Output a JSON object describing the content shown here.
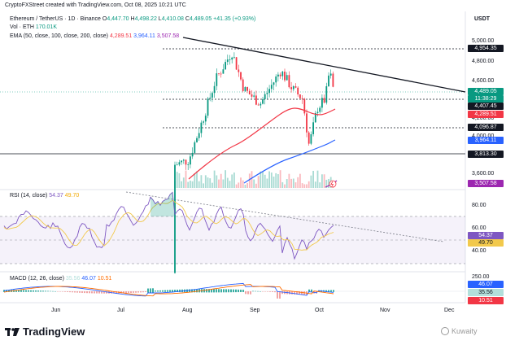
{
  "header": {
    "created": "CryptoFXStreet created with TradingView.com, Oct 08, 2025 10:21 UTC",
    "symbol": "Ethereum / TetherUS · 1D · Binance",
    "ohlc": {
      "o_label": "O",
      "o": "4,447.70",
      "h_label": "H",
      "h": "4,498.22",
      "l_label": "L",
      "l": "4,410.08",
      "c_label": "C",
      "c": "4,489.05",
      "chg": "+41.35 (+0.93%)"
    },
    "vol_label": "Vol · ETH",
    "vol_value": "170.01K",
    "ema_label": "EMA (50, close, 100, close, 200, close)",
    "ema_50": "4,289.51",
    "ema_100": "3,964.11",
    "ema_200": "3,507.58"
  },
  "price_axis": {
    "currency": "USDT",
    "ticks": [
      "5,000.00",
      "4,800.00",
      "4,600.00",
      "4,200.00",
      "4,000.00",
      "3,600.00"
    ],
    "tags": [
      {
        "text": "4,954.35",
        "kind": "level"
      },
      {
        "text": "4,489.05",
        "kind": "price"
      },
      {
        "text": "11:38:29",
        "kind": "countdown"
      },
      {
        "text": "4,407.45",
        "kind": "level"
      },
      {
        "text": "4,289.51",
        "kind": "ema50"
      },
      {
        "text": "4,096.87",
        "kind": "level"
      },
      {
        "text": "3,964.11",
        "kind": "ema100"
      },
      {
        "text": "3,813.30",
        "kind": "level"
      },
      {
        "text": "3,507.58",
        "kind": "ema200"
      }
    ]
  },
  "rsi": {
    "title": "RSI (14, close)",
    "value": "54.37",
    "ma_value": "49.70",
    "ticks": [
      "80.00",
      "60.00",
      "40.00"
    ],
    "tag_value": "54.37",
    "tag_ma": "49.70"
  },
  "macd": {
    "title": "MACD (12, 26, close)",
    "hist": "35.56",
    "macd": "46.07",
    "signal": "10.51",
    "ticks": [
      "250.00"
    ],
    "tag_macd": "46.07",
    "tag_hist": "35.56",
    "tag_signal": "10.51"
  },
  "time_axis": [
    "Jun",
    "Jul",
    "Aug",
    "Sep",
    "Oct",
    "Nov",
    "Dec"
  ],
  "footer": {
    "brand": "TradingView",
    "watermark": "Kuwaity"
  },
  "colors": {
    "up": "#089981",
    "down": "#f23645",
    "ema50": "#f23645",
    "ema100": "#2962ff",
    "ema200": "#9c27b0",
    "rsi": "#7e57c2",
    "rsi_ma": "#f2c94c"
  },
  "chart_data": {
    "type": "candlestick",
    "symbol": "Ethereum / TetherUS",
    "interval": "1D",
    "y_ticks": [
      3600,
      4000,
      4200,
      4600,
      4800,
      5000
    ],
    "price_levels": [
      4954.35,
      4407.45,
      4096.87,
      3813.3
    ],
    "last_price": 4489.05,
    "ema": {
      "ema50": 4289.51,
      "ema100": 3964.11,
      "ema200": 3507.58
    },
    "rsi_levels": [
      80,
      60,
      40
    ],
    "rsi_last": 54.37,
    "rsi_ma_last": 49.7,
    "x_labels": [
      "Jun",
      "Jul",
      "Aug",
      "Sep",
      "Oct",
      "Nov",
      "Dec"
    ]
  }
}
